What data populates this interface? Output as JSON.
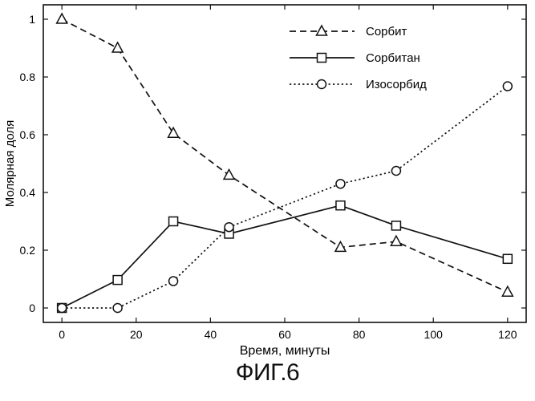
{
  "caption": "ФИГ.6",
  "chart_data": {
    "type": "line",
    "title": "",
    "xlabel": "Время, минуты",
    "ylabel": "Молярная доля",
    "xlim": [
      -5,
      125
    ],
    "ylim": [
      -0.05,
      1.05
    ],
    "x_ticks": [
      0,
      20,
      40,
      60,
      80,
      100,
      120
    ],
    "y_ticks": [
      0,
      0.2,
      0.4,
      0.6,
      0.8,
      1
    ],
    "y_tick_labels": [
      "0",
      "0.2",
      "0.4",
      "0.6",
      "0.8",
      "1"
    ],
    "grid": false,
    "legend_position": "top-right",
    "series": [
      {
        "name": "Сорбит",
        "line_style": "dashed",
        "marker": "triangle",
        "points": [
          [
            0,
            1.0
          ],
          [
            15,
            0.9
          ],
          [
            30,
            0.605
          ],
          [
            45,
            0.46
          ],
          [
            75,
            0.21
          ],
          [
            90,
            0.23
          ],
          [
            120,
            0.055
          ]
        ]
      },
      {
        "name": "Сорбитан",
        "line_style": "solid",
        "marker": "square",
        "points": [
          [
            0,
            0.0
          ],
          [
            15,
            0.097
          ],
          [
            30,
            0.3
          ],
          [
            45,
            0.257
          ],
          [
            75,
            0.355
          ],
          [
            90,
            0.285
          ],
          [
            120,
            0.17
          ]
        ]
      },
      {
        "name": "Изосорбид",
        "line_style": "dotted",
        "marker": "circle",
        "points": [
          [
            0,
            0.0
          ],
          [
            15,
            0.0
          ],
          [
            30,
            0.093
          ],
          [
            45,
            0.28
          ],
          [
            75,
            0.43
          ],
          [
            90,
            0.475
          ],
          [
            120,
            0.768
          ]
        ]
      }
    ]
  }
}
